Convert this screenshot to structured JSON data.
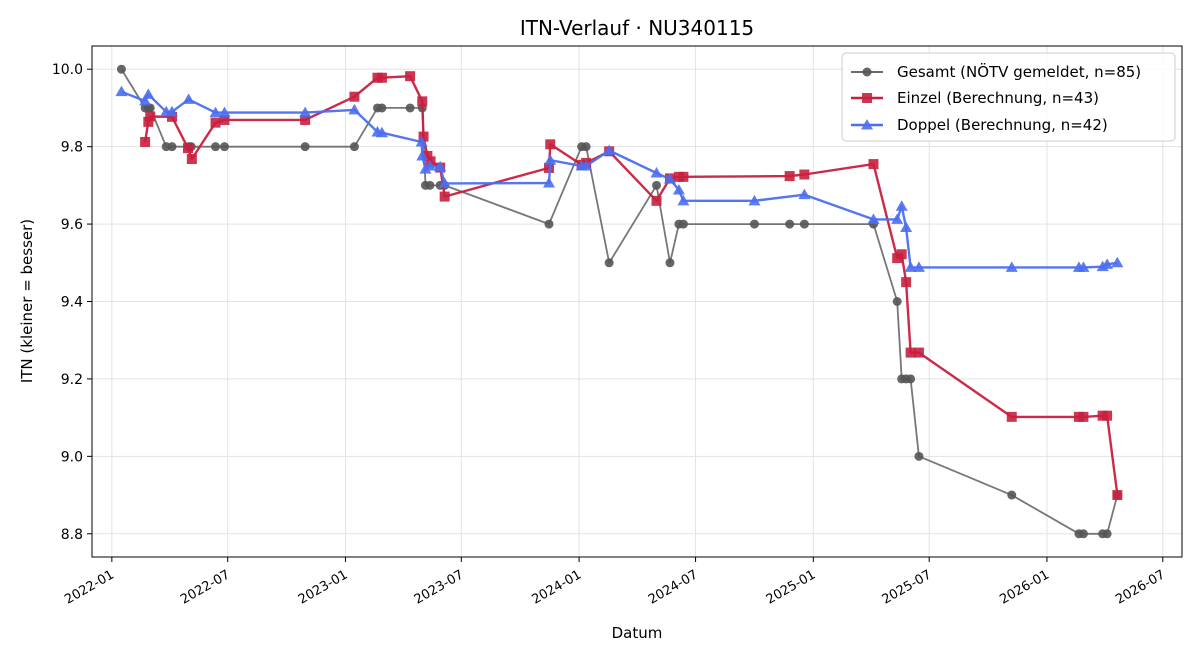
{
  "chart_data": {
    "type": "line",
    "title": "ITN-Verlauf · NU340115",
    "xlabel": "Datum",
    "ylabel": "ITN  (kleiner = besser)",
    "xlim": [
      "2021-12-01",
      "2026-07-31"
    ],
    "ylim": [
      8.74,
      10.06
    ],
    "x_ticks": [
      "2022-01-01",
      "2022-07-01",
      "2023-01-01",
      "2023-07-01",
      "2024-01-01",
      "2024-07-01",
      "2025-01-01",
      "2025-07-01",
      "2026-01-01",
      "2026-07-01"
    ],
    "x_tick_labels": [
      "2022-01",
      "2022-07",
      "2023-01",
      "2023-07",
      "2024-01",
      "2024-07",
      "2025-01",
      "2025-07",
      "2026-01",
      "2026-07"
    ],
    "y_ticks": [
      8.8,
      9.0,
      9.2,
      9.4,
      9.6,
      9.8,
      10.0
    ],
    "y_tick_labels": [
      "8.8",
      "9.0",
      "9.2",
      "9.4",
      "9.6",
      "9.8",
      "10.0"
    ],
    "grid": true,
    "legend_position": "top-right",
    "series": [
      {
        "name": "Gesamt (NÖTV gemeldet, n=85)",
        "color": "#555555",
        "marker": "circle",
        "points": [
          [
            "2022-01-16",
            10.0
          ],
          [
            "2022-02-22",
            9.9
          ],
          [
            "2022-02-27",
            9.9
          ],
          [
            "2022-03-02",
            9.9
          ],
          [
            "2022-03-27",
            9.8
          ],
          [
            "2022-04-05",
            9.8
          ],
          [
            "2022-05-01",
            9.8
          ],
          [
            "2022-05-05",
            9.8
          ],
          [
            "2022-06-12",
            9.8
          ],
          [
            "2022-06-26",
            9.8
          ],
          [
            "2022-10-30",
            9.8
          ],
          [
            "2023-01-15",
            9.8
          ],
          [
            "2023-02-20",
            9.9
          ],
          [
            "2023-02-27",
            9.9
          ],
          [
            "2023-04-12",
            9.9
          ],
          [
            "2023-05-01",
            9.9
          ],
          [
            "2023-05-06",
            9.7
          ],
          [
            "2023-05-13",
            9.7
          ],
          [
            "2023-05-29",
            9.7
          ],
          [
            "2023-06-05",
            9.7
          ],
          [
            "2023-11-15",
            9.6
          ],
          [
            "2024-01-05",
            9.8
          ],
          [
            "2024-01-12",
            9.8
          ],
          [
            "2024-02-17",
            9.5
          ],
          [
            "2024-05-01",
            9.7
          ],
          [
            "2024-05-22",
            9.5
          ],
          [
            "2024-06-05",
            9.6
          ],
          [
            "2024-06-12",
            9.6
          ],
          [
            "2024-10-01",
            9.6
          ],
          [
            "2024-11-25",
            9.6
          ],
          [
            "2024-12-18",
            9.6
          ],
          [
            "2025-04-05",
            9.6
          ],
          [
            "2025-05-12",
            9.4
          ],
          [
            "2025-05-19",
            9.2
          ],
          [
            "2025-05-26",
            9.2
          ],
          [
            "2025-06-02",
            9.2
          ],
          [
            "2025-06-15",
            9.0
          ],
          [
            "2025-11-07",
            8.9
          ],
          [
            "2026-02-20",
            8.8
          ],
          [
            "2026-02-27",
            8.8
          ],
          [
            "2026-03-29",
            8.8
          ],
          [
            "2026-04-05",
            8.8
          ],
          [
            "2026-04-21",
            8.9
          ]
        ]
      },
      {
        "name": "Einzel (Berechnung, n=43)",
        "color": "#c8203e",
        "marker": "square",
        "points": [
          [
            "2022-02-22",
            9.812
          ],
          [
            "2022-02-27",
            9.864
          ],
          [
            "2022-03-02",
            9.878
          ],
          [
            "2022-04-05",
            9.877
          ],
          [
            "2022-04-30",
            9.796
          ],
          [
            "2022-05-06",
            9.768
          ],
          [
            "2022-06-12",
            9.862
          ],
          [
            "2022-06-26",
            9.869
          ],
          [
            "2022-10-30",
            9.869
          ],
          [
            "2023-01-15",
            9.929
          ],
          [
            "2023-02-20",
            9.978
          ],
          [
            "2023-02-27",
            9.978
          ],
          [
            "2023-04-12",
            9.982
          ],
          [
            "2023-05-01",
            9.917
          ],
          [
            "2023-05-03",
            9.826
          ],
          [
            "2023-05-09",
            9.776
          ],
          [
            "2023-05-14",
            9.762
          ],
          [
            "2023-05-29",
            9.746
          ],
          [
            "2023-06-05",
            9.671
          ],
          [
            "2023-11-15",
            9.745
          ],
          [
            "2023-11-17",
            9.806
          ],
          [
            "2024-01-05",
            9.753
          ],
          [
            "2024-01-12",
            9.758
          ],
          [
            "2024-02-17",
            9.788
          ],
          [
            "2024-05-01",
            9.66
          ],
          [
            "2024-05-22",
            9.718
          ],
          [
            "2024-06-05",
            9.722
          ],
          [
            "2024-06-12",
            9.722
          ],
          [
            "2024-11-25",
            9.724
          ],
          [
            "2024-12-18",
            9.728
          ],
          [
            "2025-04-05",
            9.755
          ],
          [
            "2025-05-12",
            9.512
          ],
          [
            "2025-05-19",
            9.522
          ],
          [
            "2025-05-26",
            9.45
          ],
          [
            "2025-06-02",
            9.268
          ],
          [
            "2025-06-15",
            9.268
          ],
          [
            "2025-11-07",
            9.102
          ],
          [
            "2026-02-20",
            9.102
          ],
          [
            "2026-02-27",
            9.102
          ],
          [
            "2026-03-29",
            9.105
          ],
          [
            "2026-04-05",
            9.105
          ],
          [
            "2026-04-21",
            8.9
          ]
        ]
      },
      {
        "name": "Doppel (Berechnung, n=42)",
        "color": "#4c6ef0",
        "marker": "triangle",
        "points": [
          [
            "2022-01-16",
            9.942
          ],
          [
            "2022-02-22",
            9.918
          ],
          [
            "2022-02-27",
            9.935
          ],
          [
            "2022-03-27",
            9.89
          ],
          [
            "2022-04-05",
            9.89
          ],
          [
            "2022-05-01",
            9.922
          ],
          [
            "2022-06-12",
            9.888
          ],
          [
            "2022-06-26",
            9.888
          ],
          [
            "2022-10-30",
            9.888
          ],
          [
            "2023-01-15",
            9.895
          ],
          [
            "2023-02-20",
            9.838
          ],
          [
            "2023-02-27",
            9.836
          ],
          [
            "2023-04-30",
            9.812
          ],
          [
            "2023-05-01",
            9.776
          ],
          [
            "2023-05-06",
            9.742
          ],
          [
            "2023-05-13",
            9.75
          ],
          [
            "2023-05-29",
            9.748
          ],
          [
            "2023-06-05",
            9.705
          ],
          [
            "2023-11-15",
            9.706
          ],
          [
            "2023-11-17",
            9.765
          ],
          [
            "2024-01-05",
            9.75
          ],
          [
            "2024-01-12",
            9.75
          ],
          [
            "2024-02-17",
            9.79
          ],
          [
            "2024-05-01",
            9.732
          ],
          [
            "2024-05-22",
            9.716
          ],
          [
            "2024-06-05",
            9.688
          ],
          [
            "2024-06-12",
            9.66
          ],
          [
            "2024-10-01",
            9.66
          ],
          [
            "2024-12-18",
            9.676
          ],
          [
            "2025-04-05",
            9.612
          ],
          [
            "2025-05-12",
            9.612
          ],
          [
            "2025-05-19",
            9.646
          ],
          [
            "2025-05-26",
            9.591
          ],
          [
            "2025-06-02",
            9.488
          ],
          [
            "2025-06-15",
            9.488
          ],
          [
            "2025-11-07",
            9.488
          ],
          [
            "2026-02-20",
            9.488
          ],
          [
            "2026-02-27",
            9.488
          ],
          [
            "2026-03-29",
            9.49
          ],
          [
            "2026-04-05",
            9.496
          ],
          [
            "2026-04-21",
            9.5
          ]
        ]
      }
    ]
  }
}
